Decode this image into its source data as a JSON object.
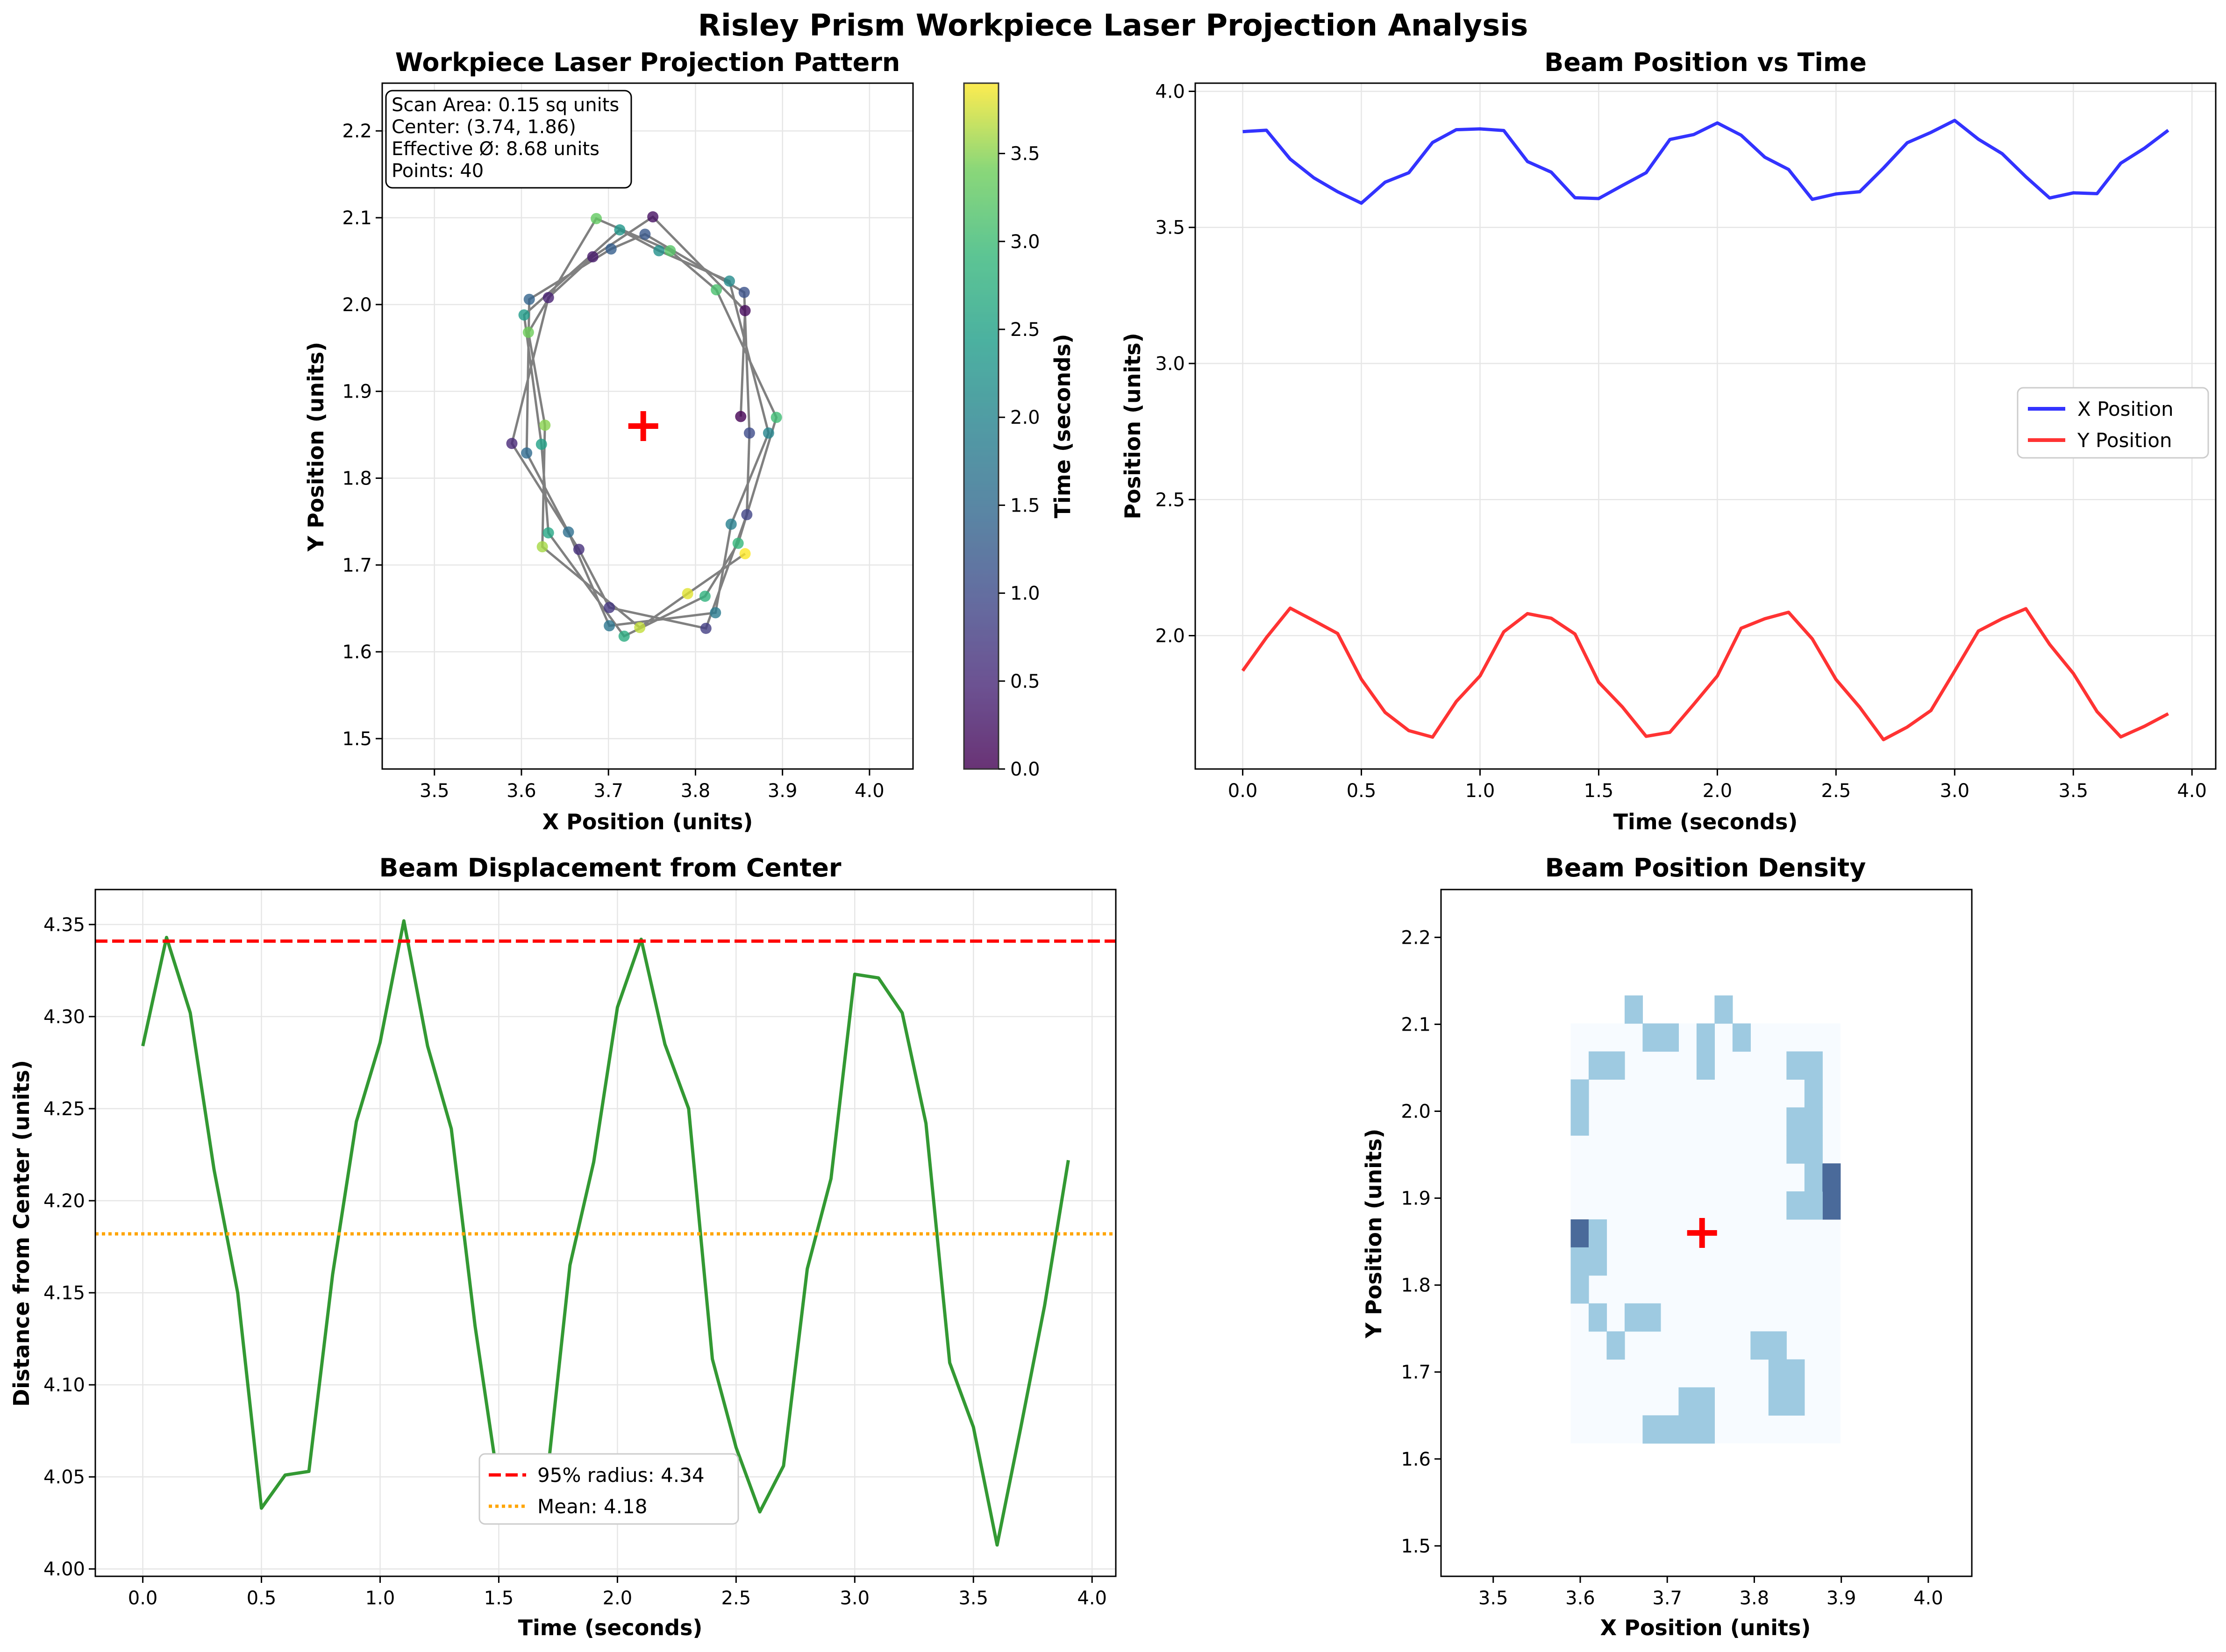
{
  "suptitle": "Risley Prism Workpiece Laser Projection Analysis",
  "colors": {
    "path": "#808080",
    "center_marker": "#ff0000",
    "x_series": "#0000ff",
    "y_series": "#ff0000",
    "displacement": "#008000",
    "radius95": "#ff0000",
    "mean": "#ffa500",
    "grid": "#e6e6e6"
  },
  "chart_data": [
    {
      "id": "pattern",
      "type": "scatter",
      "title": "Workpiece Laser Projection Pattern",
      "xlabel": "X Position (units)",
      "ylabel": "Y Position (units)",
      "xlim": [
        3.44,
        4.05
      ],
      "ylim": [
        1.465,
        2.255
      ],
      "xticks": [
        3.5,
        3.6,
        3.7,
        3.8,
        3.9,
        4.0
      ],
      "yticks": [
        1.5,
        1.6,
        1.7,
        1.8,
        1.9,
        2.0,
        2.1,
        2.2
      ],
      "grid": true,
      "colormap": "viridis",
      "colorbar": {
        "label": "Time (seconds)",
        "lim": [
          0,
          3.9
        ],
        "ticks": [
          0.0,
          0.5,
          1.0,
          1.5,
          2.0,
          2.5,
          3.0,
          3.5
        ]
      },
      "info_box": [
        "Scan Area: 0.15 sq units",
        "Center: (3.74, 1.86)",
        "Effective Ø: 8.68 units",
        "Points: 40"
      ],
      "center": [
        3.74,
        1.86
      ],
      "t": [
        0.0,
        0.1,
        0.2,
        0.3,
        0.4,
        0.5,
        0.6,
        0.7,
        0.8,
        0.9,
        1.0,
        1.1,
        1.2,
        1.3,
        1.4,
        1.5,
        1.6,
        1.7,
        1.8,
        1.9,
        2.0,
        2.1,
        2.2,
        2.3,
        2.4,
        2.5,
        2.6,
        2.7,
        2.8,
        2.9,
        3.0,
        3.1,
        3.2,
        3.3,
        3.4,
        3.5,
        3.6,
        3.7,
        3.8,
        3.9
      ],
      "x": [
        3.852,
        3.857,
        3.751,
        3.682,
        3.631,
        3.589,
        3.666,
        3.701,
        3.812,
        3.859,
        3.862,
        3.856,
        3.742,
        3.703,
        3.609,
        3.606,
        3.654,
        3.701,
        3.823,
        3.841,
        3.884,
        3.839,
        3.758,
        3.713,
        3.603,
        3.623,
        3.631,
        3.718,
        3.811,
        3.849,
        3.893,
        3.824,
        3.771,
        3.686,
        3.608,
        3.627,
        3.624,
        3.736,
        3.791,
        3.857
      ],
      "y": [
        1.871,
        1.993,
        2.101,
        2.055,
        2.008,
        1.84,
        1.718,
        1.651,
        1.627,
        1.758,
        1.852,
        2.014,
        2.081,
        2.064,
        2.006,
        1.829,
        1.738,
        1.63,
        1.645,
        1.747,
        1.852,
        2.027,
        2.062,
        2.086,
        1.988,
        1.839,
        1.737,
        1.618,
        1.664,
        1.725,
        1.87,
        2.017,
        2.062,
        2.099,
        1.968,
        1.861,
        1.721,
        1.628,
        1.667,
        1.713
      ]
    },
    {
      "id": "position_time",
      "type": "line",
      "title": "Beam Position vs Time",
      "xlabel": "Time (seconds)",
      "ylabel": "Position (units)",
      "xlim": [
        -0.2,
        4.1
      ],
      "ylim": [
        1.51,
        4.03
      ],
      "xticks": [
        0.0,
        0.5,
        1.0,
        1.5,
        2.0,
        2.5,
        3.0,
        3.5,
        4.0
      ],
      "yticks": [
        2.0,
        2.5,
        3.0,
        3.5,
        4.0
      ],
      "grid": true,
      "legend": "center-right",
      "x": [
        0.0,
        0.1,
        0.2,
        0.3,
        0.4,
        0.5,
        0.6,
        0.7,
        0.8,
        0.9,
        1.0,
        1.1,
        1.2,
        1.3,
        1.4,
        1.5,
        1.6,
        1.7,
        1.8,
        1.9,
        2.0,
        2.1,
        2.2,
        2.3,
        2.4,
        2.5,
        2.6,
        2.7,
        2.8,
        2.9,
        3.0,
        3.1,
        3.2,
        3.3,
        3.4,
        3.5,
        3.6,
        3.7,
        3.8,
        3.9
      ],
      "series": [
        {
          "name": "X Position",
          "values": [
            3.852,
            3.857,
            3.751,
            3.682,
            3.631,
            3.589,
            3.666,
            3.701,
            3.812,
            3.859,
            3.862,
            3.856,
            3.742,
            3.703,
            3.609,
            3.606,
            3.654,
            3.701,
            3.823,
            3.841,
            3.884,
            3.839,
            3.758,
            3.713,
            3.603,
            3.623,
            3.631,
            3.718,
            3.811,
            3.849,
            3.893,
            3.824,
            3.771,
            3.686,
            3.608,
            3.627,
            3.624,
            3.736,
            3.791,
            3.857
          ]
        },
        {
          "name": "Y Position",
          "values": [
            1.871,
            1.993,
            2.101,
            2.055,
            2.008,
            1.84,
            1.718,
            1.651,
            1.627,
            1.758,
            1.852,
            2.014,
            2.081,
            2.064,
            2.006,
            1.829,
            1.738,
            1.63,
            1.645,
            1.747,
            1.852,
            2.027,
            2.062,
            2.086,
            1.988,
            1.839,
            1.737,
            1.618,
            1.664,
            1.725,
            1.87,
            2.017,
            2.062,
            2.099,
            1.968,
            1.861,
            1.721,
            1.628,
            1.667,
            1.713
          ]
        }
      ]
    },
    {
      "id": "displacement",
      "type": "line",
      "title": "Beam Displacement from Center",
      "xlabel": "Time (seconds)",
      "ylabel": "Distance from Center (units)",
      "xlim": [
        -0.2,
        4.1
      ],
      "ylim": [
        3.996,
        4.369
      ],
      "xticks": [
        0.0,
        0.5,
        1.0,
        1.5,
        2.0,
        2.5,
        3.0,
        3.5,
        4.0
      ],
      "yticks": [
        4.0,
        4.05,
        4.1,
        4.15,
        4.2,
        4.25,
        4.3,
        4.35
      ],
      "grid": true,
      "legend": "bottom-center",
      "x": [
        0.0,
        0.1,
        0.2,
        0.3,
        0.4,
        0.5,
        0.6,
        0.7,
        0.8,
        0.9,
        1.0,
        1.1,
        1.2,
        1.3,
        1.4,
        1.5,
        1.6,
        1.7,
        1.8,
        1.9,
        2.0,
        2.1,
        2.2,
        2.3,
        2.4,
        2.5,
        2.6,
        2.7,
        2.8,
        2.9,
        3.0,
        3.1,
        3.2,
        3.3,
        3.4,
        3.5,
        3.6,
        3.7,
        3.8,
        3.9
      ],
      "values": [
        4.284,
        4.343,
        4.302,
        4.217,
        4.15,
        4.033,
        4.051,
        4.053,
        4.16,
        4.243,
        4.286,
        4.352,
        4.284,
        4.239,
        4.132,
        4.045,
        4.049,
        4.045,
        4.165,
        4.221,
        4.305,
        4.342,
        4.285,
        4.25,
        4.114,
        4.066,
        4.031,
        4.056,
        4.163,
        4.212,
        4.323,
        4.321,
        4.302,
        4.242,
        4.112,
        4.077,
        4.013,
        4.077,
        4.143,
        4.222
      ],
      "reference_lines": [
        {
          "name": "95% radius: 4.34",
          "value": 4.341,
          "style": "dashed"
        },
        {
          "name": "Mean: 4.18",
          "value": 4.182,
          "style": "dotted"
        }
      ]
    },
    {
      "id": "density",
      "type": "heatmap",
      "title": "Beam Position Density",
      "xlabel": "X Position (units)",
      "ylabel": "Y Position (units)",
      "xlim": [
        3.44,
        4.05
      ],
      "ylim": [
        1.465,
        2.255
      ],
      "xticks": [
        3.5,
        3.6,
        3.7,
        3.8,
        3.9,
        4.0
      ],
      "yticks": [
        1.5,
        1.6,
        1.7,
        1.8,
        1.9,
        2.0,
        2.1,
        2.2
      ],
      "extent": [
        3.589,
        3.899,
        1.618,
        2.101
      ],
      "bins": [
        15,
        15
      ],
      "center": [
        3.74,
        1.86
      ],
      "levels": {
        "0": "#f7fbff",
        "1": "#9ecae1",
        "2": "#4a6a9a"
      },
      "cells": [
        [
          0,
          6,
          1
        ],
        [
          0,
          7,
          2
        ],
        [
          1,
          6,
          1
        ],
        [
          1,
          7,
          1
        ],
        [
          0,
          11,
          1
        ],
        [
          0,
          12,
          1
        ],
        [
          1,
          13,
          1
        ],
        [
          2,
          13,
          1
        ],
        [
          4,
          14,
          1
        ],
        [
          5,
          14,
          1
        ],
        [
          3,
          15,
          1
        ],
        [
          7,
          14,
          1
        ],
        [
          7,
          13,
          1
        ],
        [
          8,
          15,
          1
        ],
        [
          9,
          14,
          1
        ],
        [
          12,
          13,
          1
        ],
        [
          13,
          13,
          1
        ],
        [
          13,
          12,
          1
        ],
        [
          11,
          1,
          1
        ],
        [
          12,
          2,
          1
        ],
        [
          12,
          1,
          1
        ],
        [
          10,
          3,
          1
        ],
        [
          11,
          3,
          1
        ],
        [
          11,
          2,
          1
        ],
        [
          6,
          0,
          1
        ],
        [
          6,
          1,
          1
        ],
        [
          7,
          0,
          1
        ],
        [
          7,
          1,
          1
        ],
        [
          4,
          0,
          1
        ],
        [
          5,
          0,
          1
        ],
        [
          2,
          3,
          1
        ],
        [
          1,
          4,
          1
        ],
        [
          3,
          4,
          1
        ],
        [
          4,
          4,
          1
        ],
        [
          0,
          5,
          1
        ],
        [
          0,
          6,
          1
        ],
        [
          14,
          8,
          2
        ],
        [
          13,
          8,
          1
        ],
        [
          12,
          8,
          1
        ],
        [
          13,
          9,
          1
        ],
        [
          14,
          9,
          2
        ],
        [
          12,
          10,
          1
        ],
        [
          13,
          10,
          1
        ],
        [
          13,
          11,
          1
        ],
        [
          12,
          11,
          1
        ]
      ]
    }
  ]
}
